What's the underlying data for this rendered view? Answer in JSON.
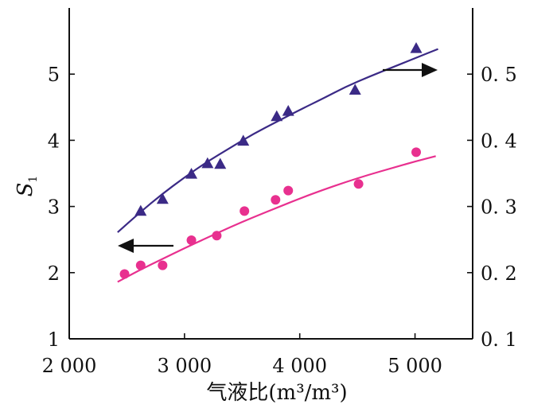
{
  "chart_data": {
    "type": "scatter",
    "title": "",
    "xlabel": "气液比",
    "xunit": "(m³/m³)",
    "ylabel": "S",
    "ylabel_sub": "1",
    "xlim": [
      2000,
      5500
    ],
    "ylim_left": [
      1,
      6
    ],
    "ylim_right": [
      0.1,
      0.6
    ],
    "x_ticks": [
      2000,
      3000,
      4000,
      5000
    ],
    "x_tick_labels": [
      "2 000",
      "3 000",
      "4 000",
      "5 000"
    ],
    "y_ticks_left": [
      1,
      2,
      3,
      4,
      5
    ],
    "y_tick_labels_left": [
      "1",
      "2",
      "3",
      "4",
      "5"
    ],
    "y_ticks_right": [
      0.1,
      0.2,
      0.3,
      0.4,
      0.5
    ],
    "y_tick_labels_right": [
      "0. 1",
      "0. 2",
      "0. 3",
      "0. 4",
      "0. 5"
    ],
    "grid": false,
    "series": [
      {
        "axis": "left",
        "marker": "circle",
        "color": "#e8308f",
        "x": [
          2480,
          2620,
          2810,
          3060,
          3280,
          3520,
          3790,
          3900,
          4510,
          5010
        ],
        "y": [
          1.98,
          2.11,
          2.11,
          2.49,
          2.56,
          2.93,
          3.1,
          3.24,
          3.34,
          3.82
        ],
        "fit_x": [
          2420,
          2600,
          2800,
          3000,
          3200,
          3400,
          3600,
          3800,
          4000,
          4200,
          4400,
          4600,
          4800,
          5000,
          5180
        ],
        "fit_y": [
          1.86,
          2.03,
          2.2,
          2.37,
          2.53,
          2.69,
          2.84,
          2.98,
          3.12,
          3.25,
          3.37,
          3.48,
          3.58,
          3.68,
          3.76
        ]
      },
      {
        "axis": "right",
        "marker": "triangle",
        "color": "#3b2a86",
        "x": [
          2620,
          2810,
          3060,
          3200,
          3310,
          3510,
          3800,
          3900,
          4480,
          5010
        ],
        "y": [
          0.293,
          0.311,
          0.349,
          0.365,
          0.364,
          0.399,
          0.436,
          0.444,
          0.476,
          0.539
        ],
        "fit_x": [
          2420,
          2600,
          2800,
          3000,
          3200,
          3400,
          3600,
          3800,
          4000,
          4200,
          4400,
          4600,
          4800,
          5000,
          5200
        ],
        "fit_y": [
          0.261,
          0.289,
          0.318,
          0.344,
          0.368,
          0.389,
          0.41,
          0.428,
          0.446,
          0.463,
          0.481,
          0.496,
          0.51,
          0.524,
          0.538
        ]
      }
    ],
    "annotations": [
      {
        "type": "arrow",
        "direction": "left",
        "refers_to": "left-axis",
        "color": "#111111"
      },
      {
        "type": "arrow",
        "direction": "right",
        "refers_to": "right-axis",
        "color": "#111111"
      }
    ]
  }
}
